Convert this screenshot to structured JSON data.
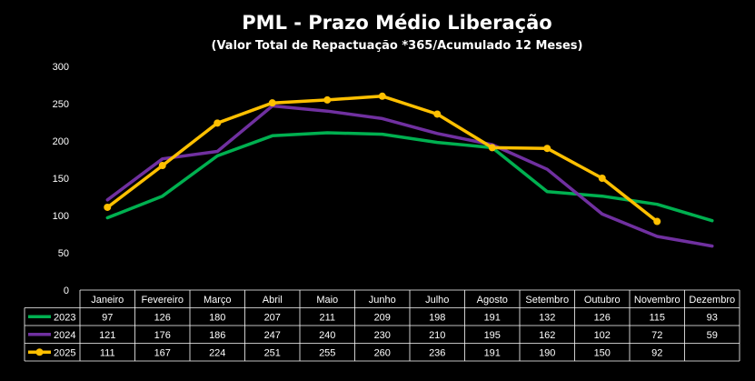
{
  "chart_data": {
    "type": "line",
    "title": "PML - Prazo Médio Liberação",
    "subtitle": "(Valor Total de Repactuação *365/Acumulado 12 Meses)",
    "categories": [
      "Janeiro",
      "Fevereiro",
      "Março",
      "Abril",
      "Maio",
      "Junho",
      "Julho",
      "Agosto",
      "Setembro",
      "Outubro",
      "Novembro",
      "Dezembro"
    ],
    "ylim": [
      0,
      300
    ],
    "yticks": [
      "0",
      "50",
      "100",
      "150",
      "200",
      "250",
      "300"
    ],
    "grid": false,
    "legend": "data-table",
    "series": [
      {
        "name": "2023",
        "color": "#00b050",
        "markers": false,
        "values": [
          97,
          126,
          180,
          207,
          211,
          209,
          198,
          191,
          132,
          126,
          115,
          93
        ],
        "labels": [
          "97",
          "126",
          "180",
          "207",
          "211",
          "209",
          "198",
          "191",
          "132",
          "126",
          "115",
          "93"
        ]
      },
      {
        "name": "2024",
        "color": "#7030a0",
        "markers": false,
        "values": [
          121,
          176,
          186,
          247,
          240,
          230,
          210,
          195,
          162,
          102,
          72,
          59
        ],
        "labels": [
          "121",
          "176",
          "186",
          "247",
          "240",
          "230",
          "210",
          "195",
          "162",
          "102",
          "72",
          "59"
        ]
      },
      {
        "name": "2025",
        "color": "#ffc000",
        "markers": true,
        "values": [
          111,
          167,
          224,
          251,
          255,
          260,
          236,
          191,
          190,
          150,
          92,
          null
        ],
        "labels": [
          "111",
          "167",
          "224",
          "251",
          "255",
          "260",
          "236",
          "191",
          "190",
          "150",
          "92",
          ""
        ]
      }
    ]
  }
}
